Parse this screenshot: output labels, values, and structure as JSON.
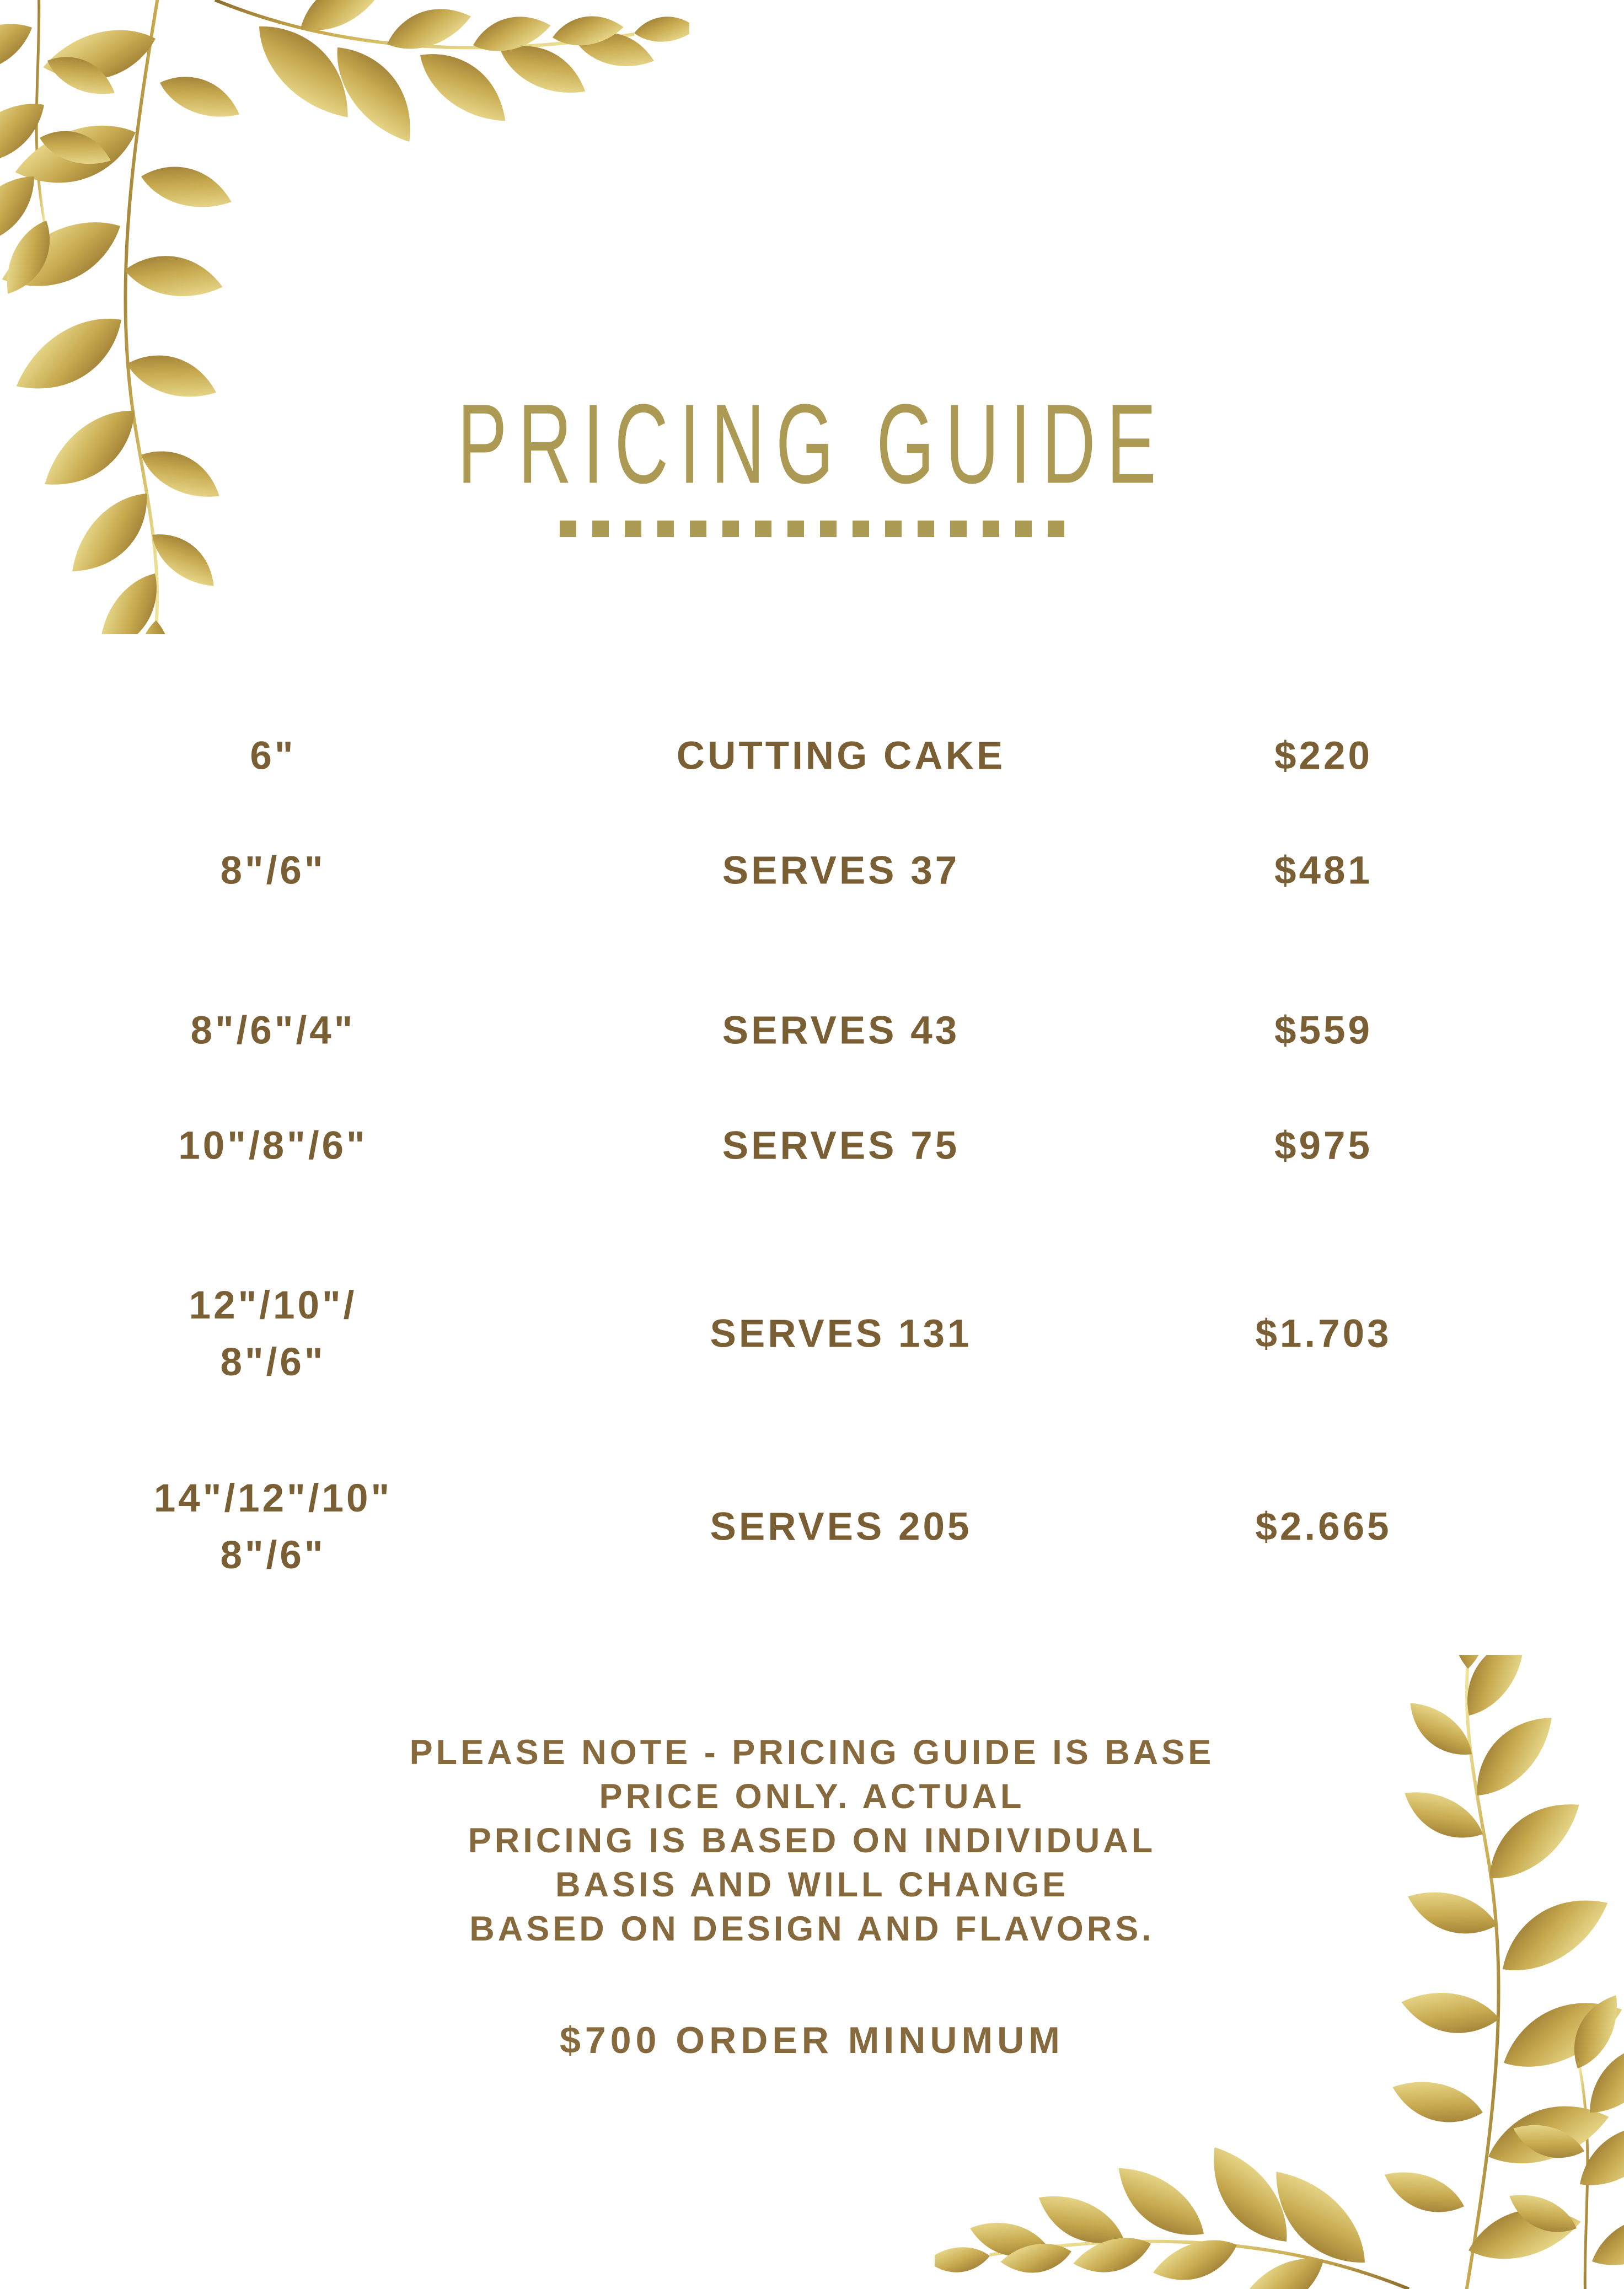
{
  "page": {
    "title": "PRICING GUIDE",
    "divider_dash_count": 16,
    "colors": {
      "title_gold": "#ac9a54",
      "dash_gold": "#ac9b55",
      "table_text": "#7b5f34",
      "note_text": "#86693c",
      "background": "#ffffff",
      "leaf_gradient_dark": "#8c6c2b",
      "leaf_gradient_mid": "#c7a94f",
      "leaf_gradient_light": "#f5eca4"
    }
  },
  "pricing_table": {
    "rows": [
      {
        "size": "6\"",
        "serves": "CUTTING CAKE",
        "price": "$220"
      },
      {
        "size": "8\"/6\"",
        "serves": "SERVES 37",
        "price": "$481"
      },
      {
        "size": "8\"/6\"/4\"",
        "serves": "SERVES 43",
        "price": "$559"
      },
      {
        "size": "10\"/8\"/6\"",
        "serves": "SERVES 75",
        "price": "$975"
      },
      {
        "size": "12\"/10\"/\n8\"/6\"",
        "serves": "SERVES 131",
        "price": "$1.703"
      },
      {
        "size": "14\"/12\"/10\"\n8\"/6\"",
        "serves": "SERVES 205",
        "price": "$2.665"
      }
    ]
  },
  "footer": {
    "note": "PLEASE NOTE - PRICING GUIDE IS BASE PRICE ONLY. ACTUAL\nPRICING IS BASED ON INDIVIDUAL BASIS AND WILL CHANGE\nBASED ON DESIGN AND FLAVORS.",
    "minimum": "$700 ORDER MINUMUM"
  }
}
